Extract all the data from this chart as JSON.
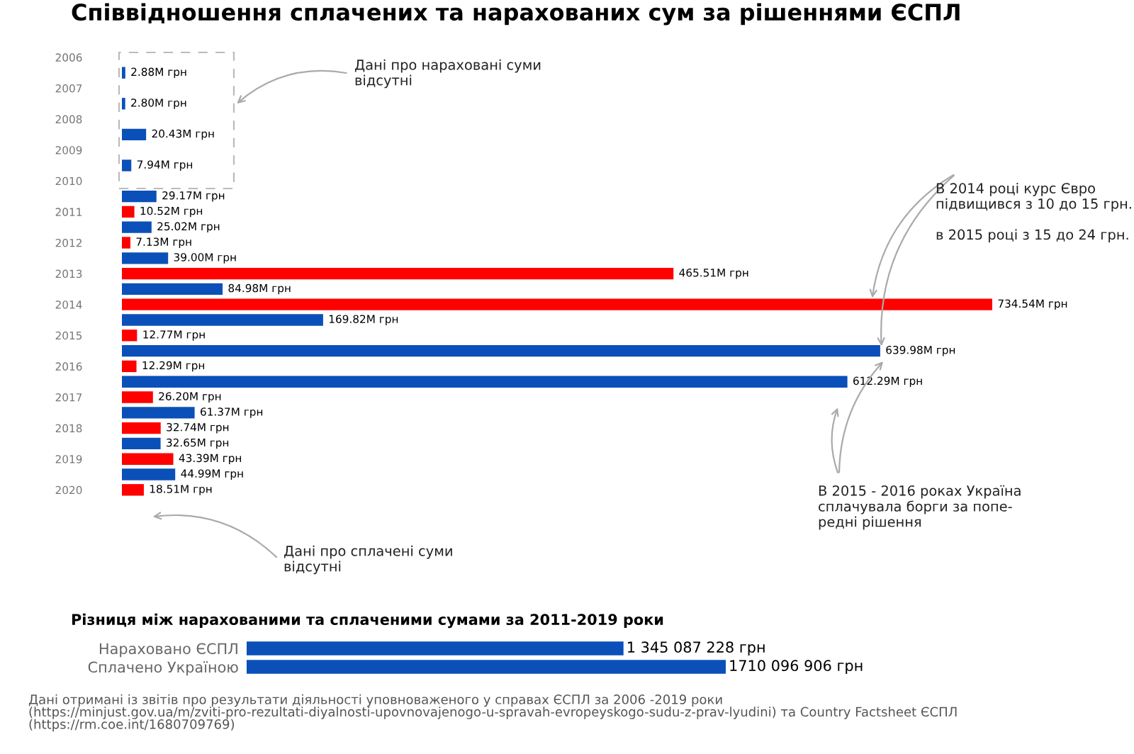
{
  "chart_data": [
    {
      "type": "bar",
      "orientation": "horizontal",
      "title": "Співвідношення сплачених та нарахованих сум за рішеннями ЄСПЛ",
      "categories": [
        "2006",
        "2007",
        "2008",
        "2009",
        "2010",
        "2011",
        "2012",
        "2013",
        "2014",
        "2015",
        "2016",
        "2017",
        "2018",
        "2019",
        "2020"
      ],
      "series": [
        {
          "color": "#ff0000",
          "values": [
            null,
            null,
            null,
            null,
            null,
            10.52,
            7.13,
            465.51,
            734.54,
            12.77,
            12.29,
            26.2,
            32.74,
            43.39,
            18.51
          ],
          "value_labels": [
            null,
            null,
            null,
            null,
            null,
            "10.52M грн",
            "7.13M грн",
            "465.51M грн",
            "734.54M грн",
            "12.77M грн",
            "12.29M грн",
            "26.20M грн",
            "32.74M грн",
            "43.39M грн",
            "18.51M грн"
          ]
        },
        {
          "color": "#0b50b8",
          "values": [
            2.88,
            2.8,
            20.43,
            7.94,
            29.17,
            25.02,
            39.0,
            84.98,
            169.82,
            639.98,
            612.29,
            61.37,
            32.65,
            44.99,
            null
          ],
          "value_labels": [
            "2.88M грн",
            "2.80M грн",
            "20.43M грн",
            "7.94M грн",
            "29.17M грн",
            "25.02M грн",
            "39.00M грн",
            "84.98M грн",
            "169.82M грн",
            "639.98M грн",
            "612.29M грн",
            "61.37M грн",
            "32.65M грн",
            "44.99M грн",
            null
          ]
        }
      ],
      "annotations": [
        "Дані про нараховані суми\nвідсутні",
        "В 2014 році курс Євро\nпідвищився з 10 до 15 грн.\n\nв 2015 році з 15 до 24 грн.",
        "В 2015 - 2016 роках Україна\nсплачувала борги за попе-\nредні рішення",
        "Дані про сплачені суми\nвідсутні"
      ]
    },
    {
      "type": "bar",
      "orientation": "horizontal",
      "title": "Різниця між нарахованими та сплаченими сумами за 2011-2019 роки",
      "categories": [
        "Нараховано ЄСПЛ",
        "Сплачено Україною"
      ],
      "values": [
        1345087228,
        1710096906
      ],
      "color": "#0b50b8",
      "value_labels": [
        "1 345 087 228 грн",
        "1710 096 906 грн"
      ],
      "annotations": [
        "Дані отримані із звітів про результати діяльності уповноваженого у справах ЄСПЛ за 2006 -2019 роки\n(https://minjust.gov.ua/m/zviti-pro-rezultati-diyalnosti-upovnovajenogo-u-spravah-evropeyskogo-sudu-z-prav-lyudini) та Country Factsheet ЄСПЛ\n(https://rm.coe.int/1680709769)"
      ]
    }
  ]
}
